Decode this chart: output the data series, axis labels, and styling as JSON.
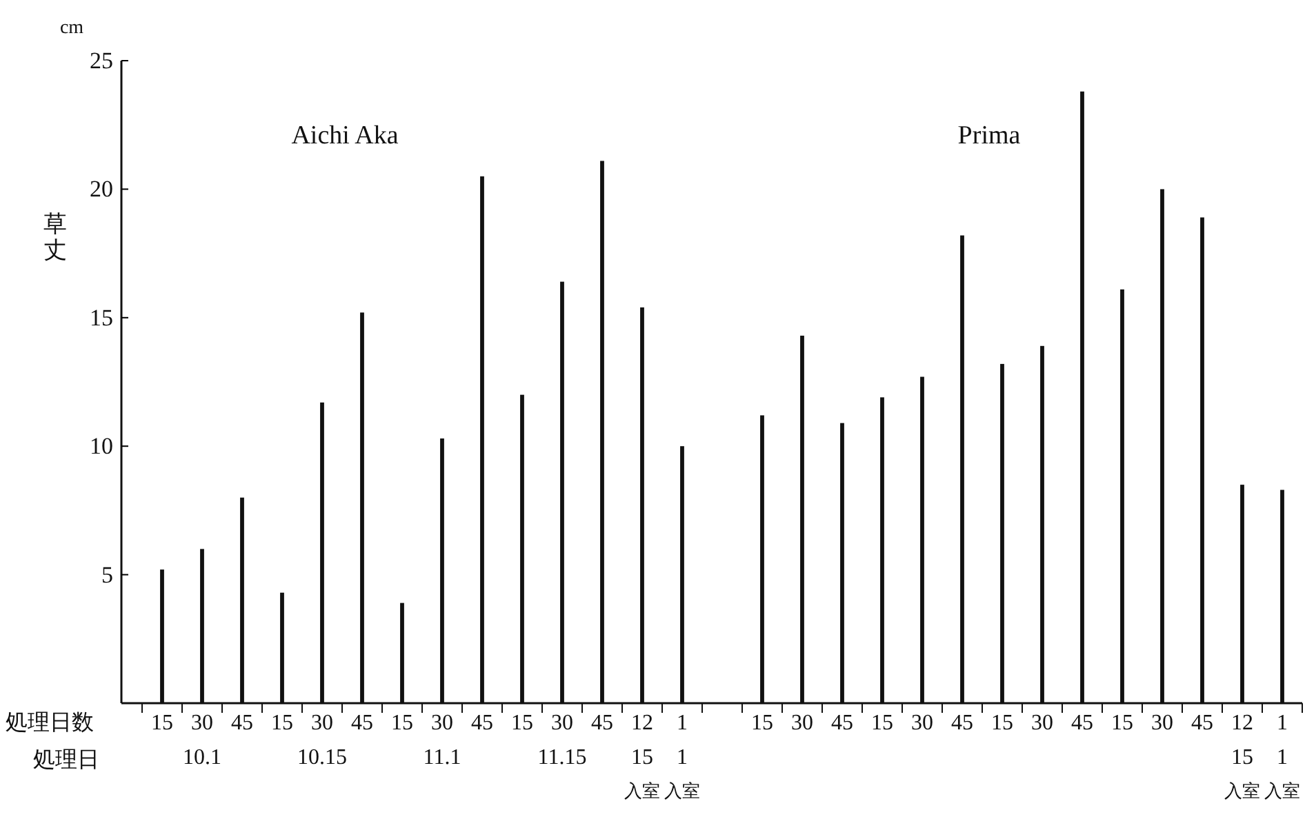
{
  "chart_data": {
    "type": "bar",
    "ylabel": "草丈",
    "annotations": [
      "cm",
      "処理日数",
      "処理日",
      "Aichi Aka",
      "Prima"
    ],
    "categories": [
      "15",
      "30\n10.1",
      "45",
      "15",
      "30\n10.15",
      "45",
      "15",
      "30\n11.1",
      "45",
      "15",
      "30\n11.15",
      "45",
      "12\n15\n入室",
      "1\n1\n入室",
      null,
      "15",
      "30",
      "45",
      "15",
      "30",
      "45",
      "15",
      "30",
      "45",
      "15",
      "30",
      "45",
      "12\n15\n入室",
      "1\n1\n入室"
    ],
    "values": [
      5.2,
      6.0,
      8.0,
      4.3,
      11.7,
      15.2,
      3.9,
      10.3,
      20.5,
      12.0,
      16.4,
      21.1,
      15.4,
      10.0,
      null,
      11.2,
      14.3,
      10.9,
      11.9,
      12.7,
      18.2,
      13.2,
      13.9,
      23.8,
      16.1,
      20.0,
      18.9,
      8.5,
      8.3
    ],
    "color": "#111111",
    "ylim": [
      0,
      25
    ],
    "yticks": [
      5,
      10,
      15,
      20,
      25
    ],
    "grid": false
  }
}
